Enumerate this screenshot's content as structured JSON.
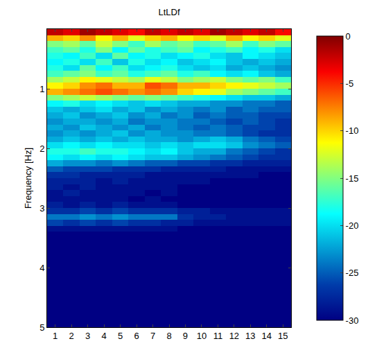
{
  "chart_data": {
    "type": "heatmap",
    "title": "LtLDf",
    "y_label": "Frequency [Hz]",
    "color": "Jet",
    "x": [
      1,
      2,
      3,
      4,
      5,
      6,
      7,
      8,
      9,
      10,
      11,
      12,
      13,
      14,
      15
    ],
    "xlim": [
      0.5,
      15.5
    ],
    "xticks": [
      1,
      2,
      3,
      4,
      5,
      6,
      7,
      8,
      9,
      10,
      11,
      12,
      13,
      14,
      15
    ],
    "ylim": [
      5,
      0
    ],
    "yticks": [
      1,
      2,
      3,
      4,
      5
    ],
    "zlim": [
      -30,
      0
    ],
    "zticks": [
      0,
      -5,
      -10,
      -15,
      -20,
      -25,
      -30
    ],
    "y": [
      0.05,
      0.15,
      0.25,
      0.35,
      0.45,
      0.55,
      0.65,
      0.75,
      0.85,
      0.95,
      1.05,
      1.15,
      1.25,
      1.35,
      1.45,
      1.55,
      1.65,
      1.75,
      1.85,
      1.95,
      2.05,
      2.15,
      2.25,
      2.35,
      2.45,
      2.55,
      2.65,
      2.75,
      2.85,
      2.95,
      3.05,
      3.15,
      3.25,
      3.35,
      3.45,
      3.55,
      3.65,
      3.75,
      3.85,
      3.95,
      4.05,
      4.15,
      4.25,
      4.35,
      4.45,
      4.55,
      4.65,
      4.75,
      4.85,
      4.95
    ],
    "z": [
      [
        -2,
        -3,
        -1,
        -2,
        -3,
        -4,
        -2,
        -3,
        -2,
        -3,
        -1,
        -2,
        -3,
        -2,
        -4
      ],
      [
        -9,
        -10,
        -8,
        -11,
        -9,
        -12,
        -10,
        -9,
        -11,
        -10,
        -12,
        -9,
        -11,
        -10,
        -12
      ],
      [
        -15,
        -14,
        -16,
        -13,
        -15,
        -17,
        -14,
        -16,
        -15,
        -17,
        -16,
        -14,
        -17,
        -15,
        -16
      ],
      [
        -17,
        -16,
        -18,
        -15,
        -19,
        -16,
        -18,
        -17,
        -16,
        -19,
        -18,
        -17,
        -19,
        -18,
        -20
      ],
      [
        -18,
        -19,
        -17,
        -20,
        -16,
        -19,
        -18,
        -20,
        -19,
        -18,
        -20,
        -21,
        -19,
        -20,
        -21
      ],
      [
        -19,
        -18,
        -20,
        -17,
        -21,
        -18,
        -20,
        -19,
        -21,
        -20,
        -19,
        -21,
        -22,
        -21,
        -22
      ],
      [
        -18,
        -20,
        -16,
        -19,
        -17,
        -20,
        -19,
        -18,
        -20,
        -21,
        -20,
        -22,
        -21,
        -22,
        -23
      ],
      [
        -17,
        -16,
        -15,
        -17,
        -16,
        -18,
        -17,
        -16,
        -18,
        -17,
        -19,
        -20,
        -19,
        -21,
        -22
      ],
      [
        -14,
        -13,
        -11,
        -12,
        -13,
        -14,
        -12,
        -13,
        -15,
        -14,
        -13,
        -15,
        -16,
        -15,
        -17
      ],
      [
        -11,
        -10,
        -8,
        -7,
        -9,
        -9,
        -6,
        -7,
        -9,
        -9,
        -10,
        -11,
        -12,
        -13,
        -14
      ],
      [
        -9,
        -8,
        -7,
        -6,
        -7,
        -8,
        -7,
        -8,
        -10,
        -11,
        -12,
        -14,
        -15,
        -16,
        -17
      ],
      [
        -15,
        -14,
        -13,
        -14,
        -15,
        -16,
        -15,
        -16,
        -17,
        -18,
        -19,
        -20,
        -21,
        -21,
        -22
      ],
      [
        -19,
        -18,
        -20,
        -19,
        -20,
        -21,
        -20,
        -21,
        -22,
        -22,
        -23,
        -23,
        -24,
        -24,
        -25
      ],
      [
        -21,
        -22,
        -21,
        -20,
        -22,
        -21,
        -23,
        -22,
        -23,
        -24,
        -23,
        -25,
        -24,
        -25,
        -25
      ],
      [
        -22,
        -21,
        -23,
        -22,
        -21,
        -23,
        -22,
        -24,
        -23,
        -25,
        -24,
        -25,
        -25,
        -26,
        -26
      ],
      [
        -23,
        -22,
        -22,
        -23,
        -22,
        -24,
        -23,
        -23,
        -24,
        -24,
        -25,
        -26,
        -25,
        -26,
        -27
      ],
      [
        -22,
        -23,
        -21,
        -22,
        -23,
        -22,
        -24,
        -23,
        -24,
        -25,
        -24,
        -25,
        -26,
        -26,
        -27
      ],
      [
        -23,
        -22,
        -23,
        -22,
        -21,
        -23,
        -22,
        -23,
        -23,
        -24,
        -24,
        -25,
        -26,
        -27,
        -27
      ],
      [
        -22,
        -21,
        -22,
        -21,
        -22,
        -21,
        -22,
        -22,
        -23,
        -22,
        -21,
        -22,
        -24,
        -25,
        -26
      ],
      [
        -20,
        -19,
        -20,
        -19,
        -20,
        -20,
        -21,
        -20,
        -21,
        -20,
        -20,
        -21,
        -23,
        -24,
        -25
      ],
      [
        -18,
        -18,
        -17,
        -18,
        -18,
        -19,
        -20,
        -19,
        -21,
        -22,
        -22,
        -24,
        -25,
        -26,
        -27
      ],
      [
        -19,
        -20,
        -19,
        -20,
        -19,
        -20,
        -21,
        -21,
        -22,
        -23,
        -24,
        -25,
        -26,
        -27,
        -27
      ],
      [
        -22,
        -23,
        -23,
        -24,
        -23,
        -24,
        -25,
        -25,
        -26,
        -26,
        -27,
        -27,
        -28,
        -28,
        -28
      ],
      [
        -25,
        -26,
        -26,
        -26,
        -27,
        -27,
        -27,
        -28,
        -28,
        -28,
        -28,
        -29,
        -29,
        -29,
        -29
      ],
      [
        -27,
        -27,
        -28,
        -28,
        -28,
        -28,
        -29,
        -29,
        -29,
        -29,
        -29,
        -29,
        -29,
        -30,
        -30
      ],
      [
        -28,
        -28,
        -28,
        -29,
        -28,
        -29,
        -29,
        -29,
        -29,
        -29,
        -30,
        -30,
        -30,
        -30,
        -30
      ],
      [
        -28,
        -29,
        -28,
        -29,
        -29,
        -29,
        -29,
        -29,
        -30,
        -30,
        -30,
        -30,
        -30,
        -30,
        -30
      ],
      [
        -29,
        -28,
        -29,
        -29,
        -29,
        -29,
        -30,
        -29,
        -30,
        -30,
        -30,
        -30,
        -30,
        -30,
        -30
      ],
      [
        -29,
        -29,
        -29,
        -29,
        -29,
        -30,
        -29,
        -30,
        -30,
        -30,
        -30,
        -30,
        -30,
        -30,
        -30
      ],
      [
        -28,
        -29,
        -28,
        -29,
        -28,
        -29,
        -29,
        -29,
        -30,
        -30,
        -30,
        -30,
        -30,
        -30,
        -30
      ],
      [
        -27,
        -27,
        -26,
        -27,
        -26,
        -27,
        -27,
        -27,
        -28,
        -28,
        -29,
        -29,
        -29,
        -29,
        -29
      ],
      [
        -24,
        -24,
        -23,
        -24,
        -23,
        -24,
        -24,
        -24,
        -27,
        -28,
        -28,
        -29,
        -29,
        -29,
        -29
      ],
      [
        -26,
        -27,
        -26,
        -27,
        -26,
        -27,
        -27,
        -28,
        -28,
        -29,
        -29,
        -29,
        -29,
        -29,
        -29
      ],
      [
        -29,
        -29,
        -29,
        -29,
        -29,
        -29,
        -29,
        -29,
        -30,
        -30,
        -30,
        -30,
        -30,
        -30,
        -30
      ],
      [
        -30,
        -30,
        -30,
        -30,
        -30,
        -30,
        -30,
        -30,
        -30,
        -30,
        -30,
        -30,
        -30,
        -30,
        -30
      ],
      [
        -30,
        -30,
        -30,
        -30,
        -30,
        -30,
        -30,
        -30,
        -30,
        -30,
        -30,
        -30,
        -30,
        -30,
        -30
      ],
      [
        -30,
        -30,
        -30,
        -30,
        -30,
        -30,
        -30,
        -30,
        -30,
        -30,
        -30,
        -30,
        -30,
        -30,
        -30
      ],
      [
        -30,
        -30,
        -30,
        -30,
        -30,
        -30,
        -30,
        -30,
        -30,
        -30,
        -30,
        -30,
        -30,
        -30,
        -30
      ],
      [
        -30,
        -30,
        -30,
        -30,
        -30,
        -30,
        -30,
        -30,
        -30,
        -30,
        -30,
        -30,
        -30,
        -30,
        -30
      ],
      [
        -30,
        -30,
        -30,
        -30,
        -30,
        -30,
        -30,
        -30,
        -30,
        -30,
        -30,
        -30,
        -30,
        -30,
        -30
      ],
      [
        -30,
        -30,
        -30,
        -30,
        -30,
        -30,
        -30,
        -30,
        -30,
        -30,
        -30,
        -30,
        -30,
        -30,
        -30
      ],
      [
        -30,
        -30,
        -30,
        -30,
        -30,
        -30,
        -30,
        -30,
        -30,
        -30,
        -30,
        -30,
        -30,
        -30,
        -30
      ],
      [
        -30,
        -30,
        -30,
        -30,
        -30,
        -30,
        -30,
        -30,
        -30,
        -30,
        -30,
        -30,
        -30,
        -30,
        -30
      ],
      [
        -30,
        -30,
        -30,
        -30,
        -30,
        -30,
        -30,
        -30,
        -30,
        -30,
        -30,
        -30,
        -30,
        -30,
        -30
      ],
      [
        -30,
        -30,
        -30,
        -30,
        -30,
        -30,
        -30,
        -30,
        -30,
        -30,
        -30,
        -30,
        -30,
        -30,
        -30
      ],
      [
        -30,
        -30,
        -30,
        -30,
        -30,
        -30,
        -30,
        -30,
        -30,
        -30,
        -30,
        -30,
        -30,
        -30,
        -30
      ],
      [
        -30,
        -30,
        -30,
        -30,
        -30,
        -30,
        -30,
        -30,
        -30,
        -30,
        -30,
        -30,
        -30,
        -30,
        -30
      ],
      [
        -30,
        -30,
        -30,
        -30,
        -30,
        -30,
        -30,
        -30,
        -30,
        -30,
        -30,
        -30,
        -30,
        -30,
        -30
      ],
      [
        -30,
        -30,
        -30,
        -30,
        -30,
        -30,
        -30,
        -30,
        -30,
        -30,
        -30,
        -30,
        -30,
        -30,
        -30
      ],
      [
        -30,
        -30,
        -30,
        -30,
        -30,
        -30,
        -30,
        -30,
        -30,
        -30,
        -30,
        -30,
        -30,
        -30,
        -30
      ]
    ]
  }
}
